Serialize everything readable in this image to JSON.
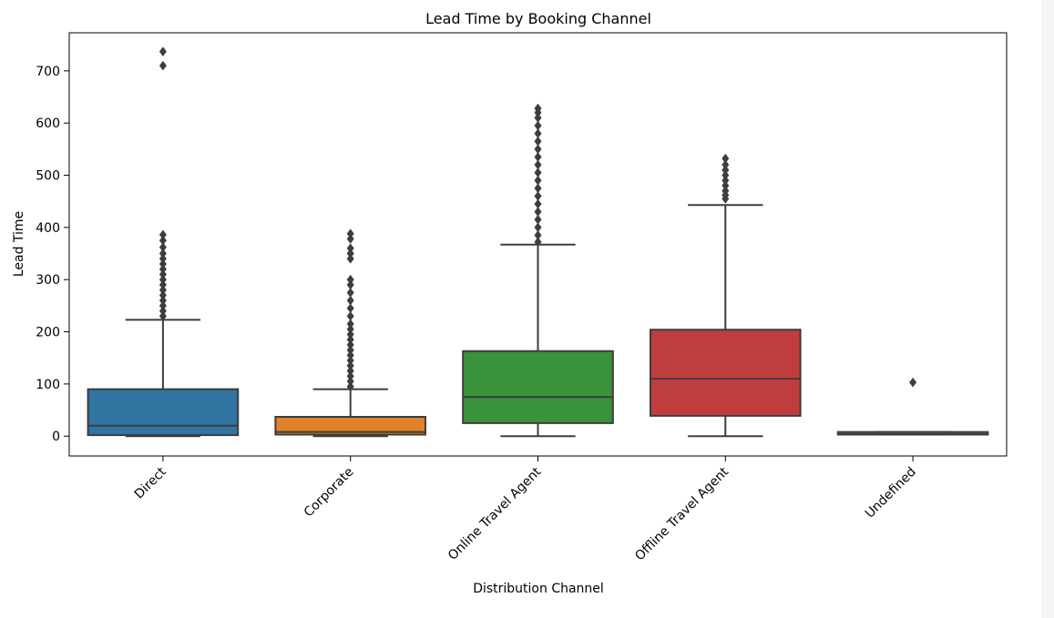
{
  "chart_data": {
    "type": "box",
    "title": "Lead Time by Booking Channel",
    "xlabel": "Distribution Channel",
    "ylabel": "Lead Time",
    "ylim": [
      -38,
      773
    ],
    "yticks": [
      0,
      100,
      200,
      300,
      400,
      500,
      600,
      700
    ],
    "grid": false,
    "categories": [
      "Direct",
      "Corporate",
      "Online Travel Agent",
      "Offline Travel Agent",
      "Undefined"
    ],
    "boxes": [
      {
        "category": "Direct",
        "color": "#3274a1",
        "whislo": 0,
        "q1": 2,
        "median": 20,
        "q3": 90,
        "whishi": 223,
        "fliers": [
          230,
          240,
          250,
          260,
          270,
          280,
          290,
          300,
          310,
          320,
          330,
          340,
          350,
          362,
          375,
          386,
          710,
          737
        ]
      },
      {
        "category": "Corporate",
        "color": "#e1812c",
        "whislo": 0,
        "q1": 3,
        "median": 8,
        "q3": 37,
        "whishi": 90,
        "fliers": [
          95,
          105,
          115,
          125,
          135,
          145,
          155,
          165,
          175,
          185,
          195,
          205,
          215,
          230,
          245,
          260,
          275,
          290,
          300,
          340,
          350,
          360,
          378,
          388
        ]
      },
      {
        "category": "Online Travel Agent",
        "color": "#3a923a",
        "whislo": 0,
        "q1": 25,
        "median": 75,
        "q3": 163,
        "whishi": 367,
        "fliers": [
          372,
          385,
          400,
          415,
          430,
          445,
          460,
          475,
          490,
          505,
          520,
          535,
          550,
          565,
          580,
          595,
          610,
          620,
          628
        ]
      },
      {
        "category": "Offline Travel Agent",
        "color": "#c03d3e",
        "whislo": 0,
        "q1": 39,
        "median": 110,
        "q3": 204,
        "whishi": 443,
        "fliers": [
          455,
          462,
          470,
          480,
          490,
          500,
          510,
          520,
          532
        ]
      },
      {
        "category": "Undefined",
        "color": "#9372b2",
        "whislo": 3,
        "q1": 3,
        "median": 4,
        "q3": 8,
        "whishi": 8,
        "fliers": [
          103
        ]
      }
    ]
  }
}
